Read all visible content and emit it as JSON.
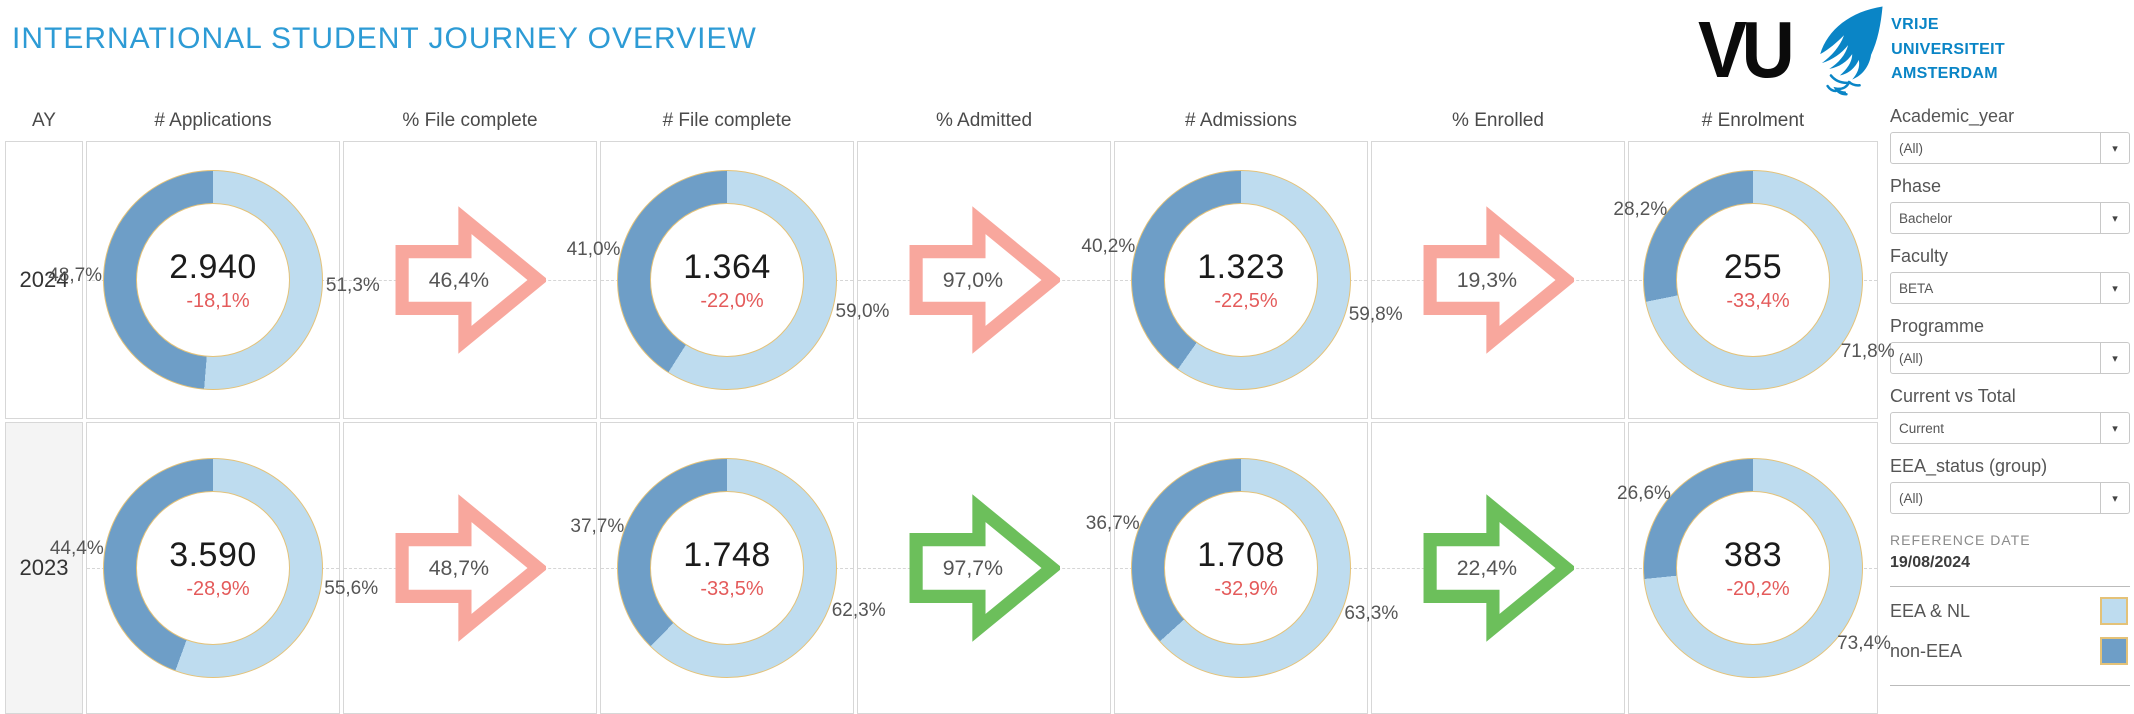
{
  "title": "INTERNATIONAL STUDENT JOURNEY OVERVIEW",
  "logo": {
    "wordmark": "VU",
    "name_lines": [
      "VRIJE",
      "UNIVERSITEIT",
      "AMSTERDAM"
    ]
  },
  "columns": [
    "AY",
    "# Applications",
    "% File complete",
    "# File complete",
    "% Admitted",
    "# Admissions",
    "% Enrolled",
    "# Enrolment"
  ],
  "colors": {
    "title_blue": "#2d9bd5",
    "logo_blue": "#0a85c6",
    "eea_nl": "#bedcef",
    "non_eea": "#6e9ec7",
    "gold_outline": "#e4c278",
    "delta_red": "#e45b5b",
    "arrow_pink": "#f8a79d",
    "arrow_green": "#6cbf5b"
  },
  "rows": [
    {
      "year": "2024",
      "applications": {
        "value": "2.940",
        "delta": "-18,1%",
        "eea_pct": 51.3,
        "eea_label": "51,3%",
        "noneea_pct": 48.7,
        "noneea_label": "48,7%"
      },
      "file_complete_rate": {
        "label": "46,4%",
        "color": "pink"
      },
      "file_complete": {
        "value": "1.364",
        "delta": "-22,0%",
        "eea_pct": 59.0,
        "eea_label": "59,0%",
        "noneea_pct": 41.0,
        "noneea_label": "41,0%"
      },
      "admitted_rate": {
        "label": "97,0%",
        "color": "pink"
      },
      "admissions": {
        "value": "1.323",
        "delta": "-22,5%",
        "eea_pct": 59.8,
        "eea_label": "59,8%",
        "noneea_pct": 40.2,
        "noneea_label": "40,2%"
      },
      "enrolled_rate": {
        "label": "19,3%",
        "color": "pink"
      },
      "enrolment": {
        "value": "255",
        "delta": "-33,4%",
        "eea_pct": 71.8,
        "eea_label": "71,8%",
        "noneea_pct": 28.2,
        "noneea_label": "28,2%"
      }
    },
    {
      "year": "2023",
      "applications": {
        "value": "3.590",
        "delta": "-28,9%",
        "eea_pct": 55.6,
        "eea_label": "55,6%",
        "noneea_pct": 44.4,
        "noneea_label": "44,4%"
      },
      "file_complete_rate": {
        "label": "48,7%",
        "color": "pink"
      },
      "file_complete": {
        "value": "1.748",
        "delta": "-33,5%",
        "eea_pct": 62.3,
        "eea_label": "62,3%",
        "noneea_pct": 37.7,
        "noneea_label": "37,7%"
      },
      "admitted_rate": {
        "label": "97,7%",
        "color": "green"
      },
      "admissions": {
        "value": "1.708",
        "delta": "-32,9%",
        "eea_pct": 63.3,
        "eea_label": "63,3%",
        "noneea_pct": 36.7,
        "noneea_label": "36,7%"
      },
      "enrolled_rate": {
        "label": "22,4%",
        "color": "green"
      },
      "enrolment": {
        "value": "383",
        "delta": "-20,2%",
        "eea_pct": 73.4,
        "eea_label": "73,4%",
        "noneea_pct": 26.6,
        "noneea_label": "26,6%"
      }
    }
  ],
  "filters": [
    {
      "label": "Academic_year",
      "value": "(All)"
    },
    {
      "label": "Phase",
      "value": "Bachelor"
    },
    {
      "label": "Faculty",
      "value": "BETA"
    },
    {
      "label": "Programme",
      "value": "(All)"
    },
    {
      "label": "Current vs Total",
      "value": "Current"
    },
    {
      "label": "EEA_status (group)",
      "value": "(All)"
    }
  ],
  "reference_date": {
    "label": "REFERENCE DATE",
    "value": "19/08/2024"
  },
  "legend": [
    {
      "label": "EEA & NL",
      "color": "#bedcef"
    },
    {
      "label": "non-EEA",
      "color": "#6e9ec7"
    }
  ],
  "caret_glyph": "▾",
  "chart_data": {
    "type": "table",
    "title": "International student journey funnel by academic year (donut KPIs with EEA & NL vs non-EEA split, conversion-rate arrows)",
    "legend_entries": [
      "EEA & NL",
      "non-EEA"
    ],
    "columns": [
      "AY",
      "applications",
      "applications_yoy_pct",
      "applications_eea_nl_pct",
      "applications_non_eea_pct",
      "file_complete_rate_pct",
      "file_complete",
      "file_complete_yoy_pct",
      "file_complete_eea_nl_pct",
      "file_complete_non_eea_pct",
      "admitted_rate_pct",
      "admissions",
      "admissions_yoy_pct",
      "admissions_eea_nl_pct",
      "admissions_non_eea_pct",
      "enrolled_rate_pct",
      "enrolment",
      "enrolment_yoy_pct",
      "enrolment_eea_nl_pct",
      "enrolment_non_eea_pct"
    ],
    "rows": [
      [
        2024,
        2940,
        -18.1,
        51.3,
        48.7,
        46.4,
        1364,
        -22.0,
        59.0,
        41.0,
        97.0,
        1323,
        -22.5,
        59.8,
        40.2,
        19.3,
        255,
        -33.4,
        71.8,
        28.2
      ],
      [
        2023,
        3590,
        -28.9,
        55.6,
        44.4,
        48.7,
        1748,
        -33.5,
        62.3,
        37.7,
        97.7,
        1708,
        -32.9,
        63.3,
        36.7,
        22.4,
        383,
        -20.2,
        73.4,
        26.6
      ]
    ]
  }
}
